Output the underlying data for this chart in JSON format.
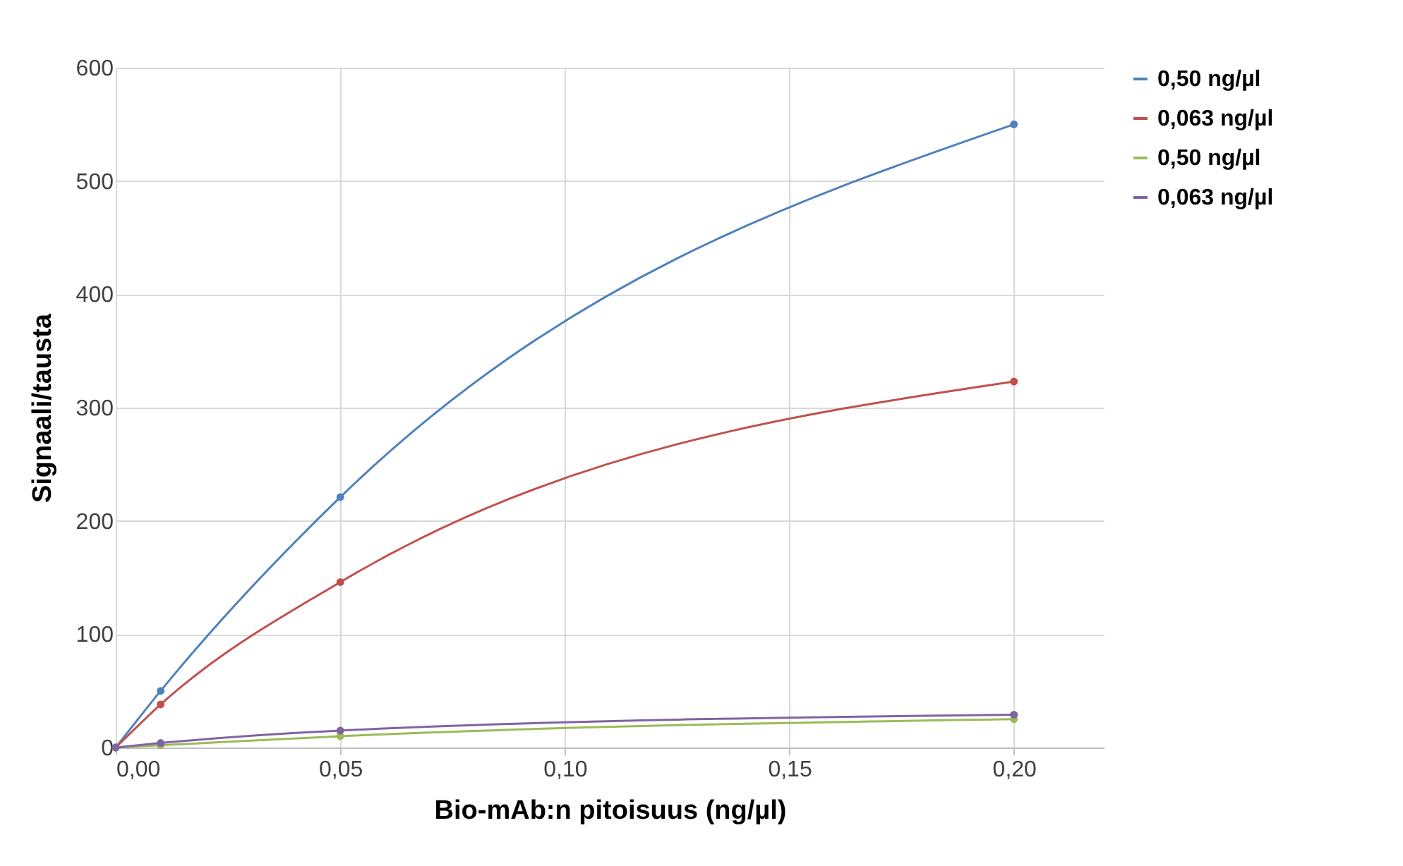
{
  "chart_data": {
    "type": "line",
    "xlabel": "Bio-mAb:n pitoisuus (ng/µl)",
    "ylabel": "Signaali/tausta",
    "x": [
      0,
      0.01,
      0.05,
      0.2
    ],
    "series": [
      {
        "name": "0,50 ng/µl",
        "color": "#4f81bd",
        "values": [
          0,
          50,
          221,
          550
        ]
      },
      {
        "name": "0,063 ng/µl",
        "color": "#c0504d",
        "values": [
          0,
          38,
          146,
          323
        ]
      },
      {
        "name": "0,50 ng/µl",
        "color": "#9bbb59",
        "values": [
          0,
          2,
          10,
          25
        ]
      },
      {
        "name": "0,063 ng/µl",
        "color": "#8064a2",
        "values": [
          0,
          4,
          15,
          29
        ]
      }
    ],
    "xlim": [
      0,
      0.22
    ],
    "xticks": [
      {
        "value": 0,
        "label": "0,00"
      },
      {
        "value": 0.05,
        "label": "0,05"
      },
      {
        "value": 0.1,
        "label": "0,10"
      },
      {
        "value": 0.15,
        "label": "0,15"
      },
      {
        "value": 0.2,
        "label": "0,20"
      }
    ],
    "ylim": [
      0,
      600
    ],
    "yticks": [
      0,
      100,
      200,
      300,
      400,
      500,
      600
    ],
    "grid": true,
    "legend": "right",
    "marker": "circle"
  }
}
